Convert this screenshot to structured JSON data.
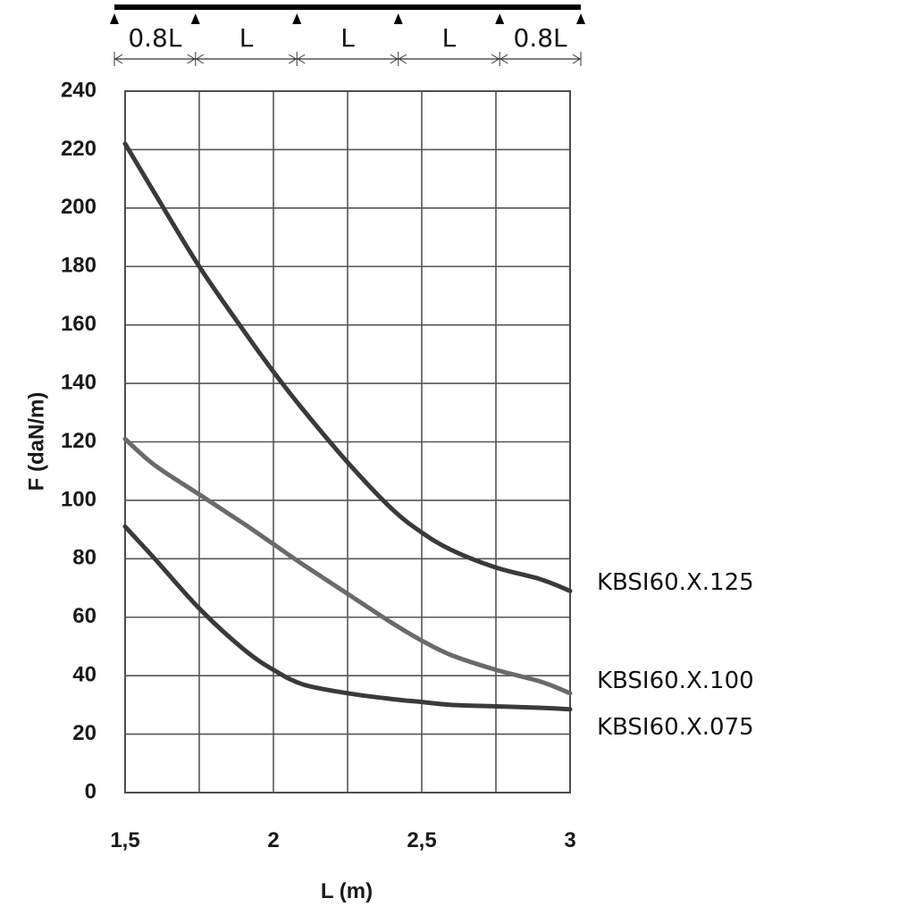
{
  "chart_data": {
    "type": "line",
    "xlabel": "L (m)",
    "ylabel": "F (daN/m)",
    "xlim": [
      1.5,
      3
    ],
    "ylim": [
      0,
      240
    ],
    "x_ticks": [
      "1,5",
      "2",
      "2,5",
      "3"
    ],
    "y_ticks": [
      "0",
      "20",
      "40",
      "60",
      "80",
      "100",
      "120",
      "140",
      "160",
      "180",
      "200",
      "220",
      "240"
    ],
    "grid": true,
    "legend": "right",
    "series": [
      {
        "name": "KBSI60.X.125",
        "color": "#3a3a3a",
        "x": [
          1.5,
          1.6,
          1.75,
          1.9,
          2.0,
          2.1,
          2.25,
          2.4,
          2.5,
          2.6,
          2.75,
          2.9,
          3.0
        ],
        "y": [
          222,
          205,
          180,
          158,
          144,
          131,
          113,
          97,
          89,
          83,
          77,
          73,
          69
        ]
      },
      {
        "name": "KBSI60.X.100",
        "color": "#6a6a6a",
        "x": [
          1.5,
          1.6,
          1.75,
          1.9,
          2.0,
          2.1,
          2.25,
          2.4,
          2.5,
          2.6,
          2.75,
          2.9,
          3.0
        ],
        "y": [
          121,
          112,
          102,
          92,
          85,
          78,
          68,
          58,
          52,
          47,
          42,
          38,
          34
        ]
      },
      {
        "name": "KBSI60.X.075",
        "color": "#3a3a3a",
        "x": [
          1.5,
          1.6,
          1.75,
          1.9,
          2.0,
          2.1,
          2.25,
          2.4,
          2.5,
          2.6,
          2.75,
          2.9,
          3.0
        ],
        "y": [
          91,
          80,
          63,
          49,
          42,
          37,
          34,
          32,
          31,
          30,
          29.5,
          29,
          28.5
        ]
      }
    ]
  },
  "span_diagram": {
    "labels": [
      "0.8L",
      "L",
      "L",
      "L",
      "0.8L"
    ],
    "weights": [
      0.8,
      1,
      1,
      1,
      0.8
    ]
  }
}
